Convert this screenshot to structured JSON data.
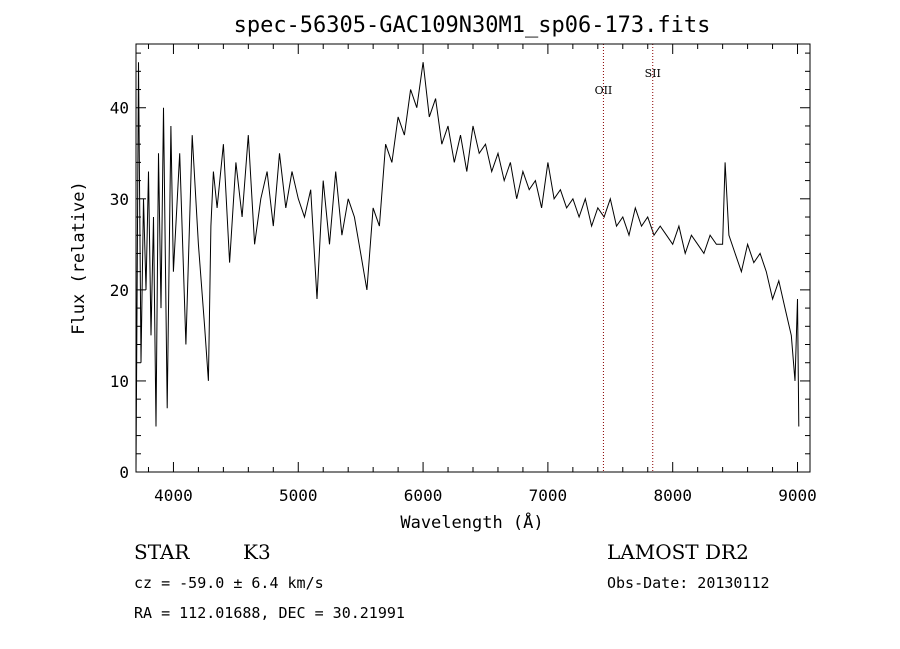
{
  "chart_data": {
    "type": "line",
    "title": "spec-56305-GAC109N30M1_sp06-173.fits",
    "xlabel": "Wavelength (Å)",
    "ylabel": "Flux (relative)",
    "xlim": [
      3700,
      9100
    ],
    "ylim": [
      0,
      47
    ],
    "x_ticks": [
      4000,
      5000,
      6000,
      7000,
      8000,
      9000
    ],
    "y_ticks": [
      0,
      10,
      20,
      30,
      40
    ],
    "grid": false,
    "series": [
      {
        "x": [
          3700,
          3720,
          3740,
          3760,
          3780,
          3800,
          3820,
          3840,
          3860,
          3880,
          3900,
          3920,
          3950,
          3980,
          4000,
          4050,
          4100,
          4150,
          4200,
          4250,
          4280,
          4300,
          4320,
          4350,
          4400,
          4450,
          4500,
          4550,
          4600,
          4650,
          4700,
          4750,
          4800,
          4850,
          4900,
          4950,
          5000,
          5050,
          5100,
          5150,
          5180,
          5200,
          5250,
          5300,
          5350,
          5400,
          5450,
          5500,
          5550,
          5600,
          5650,
          5700,
          5750,
          5800,
          5850,
          5900,
          5950,
          6000,
          6050,
          6100,
          6150,
          6200,
          6250,
          6300,
          6350,
          6400,
          6450,
          6500,
          6550,
          6600,
          6650,
          6700,
          6750,
          6800,
          6850,
          6900,
          6950,
          7000,
          7050,
          7100,
          7150,
          7200,
          7250,
          7300,
          7350,
          7400,
          7450,
          7500,
          7550,
          7600,
          7650,
          7700,
          7750,
          7800,
          7850,
          7900,
          7950,
          8000,
          8050,
          8100,
          8150,
          8200,
          8250,
          8300,
          8350,
          8400,
          8420,
          8450,
          8500,
          8550,
          8600,
          8650,
          8700,
          8750,
          8800,
          8850,
          8900,
          8950,
          8980,
          9000,
          9010
        ],
        "y": [
          0,
          45,
          12,
          30,
          20,
          33,
          15,
          28,
          5,
          35,
          18,
          40,
          7,
          38,
          22,
          35,
          14,
          37,
          25,
          16,
          10,
          27,
          33,
          29,
          36,
          23,
          34,
          28,
          37,
          25,
          30,
          33,
          27,
          35,
          29,
          33,
          30,
          28,
          31,
          19,
          27,
          32,
          25,
          33,
          26,
          30,
          28,
          24,
          20,
          29,
          27,
          36,
          34,
          39,
          37,
          42,
          40,
          45,
          39,
          41,
          36,
          38,
          34,
          37,
          33,
          38,
          35,
          36,
          33,
          35,
          32,
          34,
          30,
          33,
          31,
          32,
          29,
          34,
          30,
          31,
          29,
          30,
          28,
          30,
          27,
          29,
          28,
          30,
          27,
          28,
          26,
          29,
          27,
          28,
          26,
          27,
          26,
          25,
          27,
          24,
          26,
          25,
          24,
          26,
          25,
          25,
          34,
          26,
          24,
          22,
          25,
          23,
          24,
          22,
          19,
          21,
          18,
          15,
          10,
          19,
          5
        ]
      }
    ],
    "lines": [
      {
        "label": "OII",
        "x": 7445
      },
      {
        "label": "SII",
        "x": 7840
      }
    ]
  },
  "info": {
    "object_class": "STAR",
    "subclass": "K3",
    "survey": "LAMOST DR2",
    "redshift": "cz = -59.0 ± 6.4 km/s",
    "obs_date": "Obs-Date: 20130112",
    "coords": "RA = 112.01688, DEC =  30.21991"
  }
}
